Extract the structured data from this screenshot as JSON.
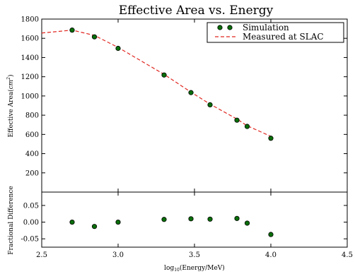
{
  "chart_data": {
    "type": "scatter",
    "title": "Effective Area vs. Energy",
    "xlabel_main": "log",
    "xlabel_sub": "10",
    "xlabel_rest": "(Energy/MeV)",
    "xlim": [
      2.5,
      4.5
    ],
    "x_ticks": [
      "2.5",
      "3.0",
      "3.5",
      "4.0",
      "4.5"
    ],
    "x_tick_values": [
      2.5,
      3.0,
      3.5,
      4.0,
      4.5
    ],
    "top_panel": {
      "ylabel_main": "Effective Area(",
      "ylabel_unit": "cm",
      "ylabel_sup": "2",
      "ylabel_close": ")",
      "ylim": [
        0,
        1800
      ],
      "y_ticks": [
        "200",
        "400",
        "600",
        "800",
        "1000",
        "1200",
        "1400",
        "1600",
        "1800"
      ],
      "y_tick_values": [
        200,
        400,
        600,
        800,
        1000,
        1200,
        1400,
        1600,
        1800
      ],
      "series": [
        {
          "name": "Simulation",
          "style": "points",
          "color": "#0a6e0a",
          "x": [
            2.699,
            2.845,
            3.0,
            3.301,
            3.477,
            3.602,
            3.778,
            3.845,
            4.0
          ],
          "y": [
            1685,
            1615,
            1495,
            1218,
            1035,
            908,
            748,
            683,
            560
          ]
        },
        {
          "name": "Measured at SLAC",
          "style": "dashed",
          "color": "#e0261f",
          "x": [
            2.5,
            2.699,
            2.845,
            3.0,
            3.301,
            3.477,
            3.602,
            3.778,
            3.845,
            4.0
          ],
          "y": [
            1655,
            1685,
            1630,
            1505,
            1225,
            1040,
            915,
            760,
            690,
            580
          ]
        }
      ],
      "legend_position": "top-right"
    },
    "bottom_panel": {
      "ylabel": "Fractional Difference",
      "ylim": [
        -0.075,
        0.09
      ],
      "y_ticks": [
        "0.05",
        "0.00",
        "-0.05"
      ],
      "y_tick_values": [
        0.05,
        0.0,
        -0.05
      ],
      "series": [
        {
          "name": "Fractional Difference",
          "style": "points",
          "color": "#0a6e0a",
          "x": [
            2.699,
            2.845,
            3.0,
            3.301,
            3.477,
            3.602,
            3.778,
            3.845,
            4.0
          ],
          "y": [
            0.0,
            -0.013,
            0.0,
            0.008,
            0.01,
            0.009,
            0.011,
            -0.003,
            -0.037
          ]
        }
      ]
    }
  }
}
